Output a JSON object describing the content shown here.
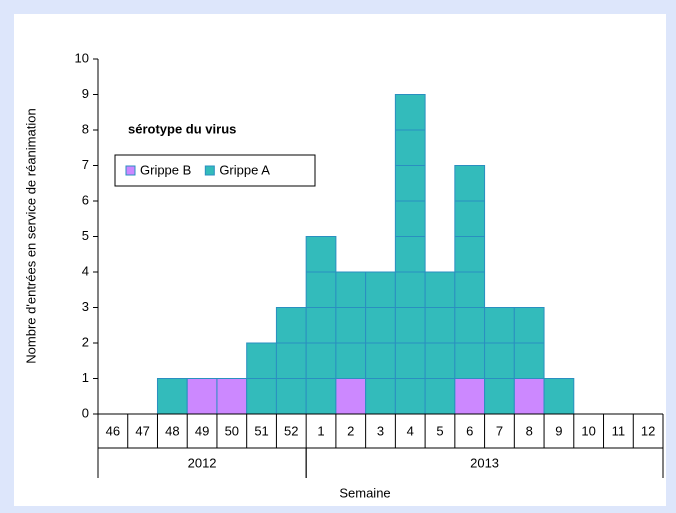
{
  "chart_data": {
    "type": "stacked_bar",
    "y_label": "Nombre d'entrées en service de réanimation",
    "x_label": "Semaine",
    "categories": [
      "46",
      "47",
      "48",
      "49",
      "50",
      "51",
      "52",
      "1",
      "2",
      "3",
      "4",
      "5",
      "6",
      "7",
      "8",
      "9",
      "10",
      "11",
      "12"
    ],
    "groups": [
      {
        "label": "2012",
        "first": "46",
        "last": "52"
      },
      {
        "label": "2013",
        "first": "1",
        "last": "12"
      }
    ],
    "series": [
      {
        "name": "Grippe B",
        "color": "#cc88ff",
        "values": [
          0,
          0,
          0,
          1,
          1,
          0,
          0,
          0,
          1,
          0,
          0,
          0,
          1,
          0,
          1,
          0,
          0,
          0,
          0
        ]
      },
      {
        "name": "Grippe A",
        "color": "#33bbbb",
        "values": [
          0,
          0,
          1,
          0,
          0,
          2,
          3,
          5,
          3,
          4,
          9,
          4,
          6,
          3,
          2,
          1,
          0,
          0,
          0
        ]
      }
    ],
    "ylim": [
      0,
      10
    ],
    "yticks": [
      0,
      1,
      2,
      3,
      4,
      5,
      6,
      7,
      8,
      9,
      10
    ],
    "legend": {
      "title": "sérotype du virus",
      "position": "upper-left"
    }
  }
}
